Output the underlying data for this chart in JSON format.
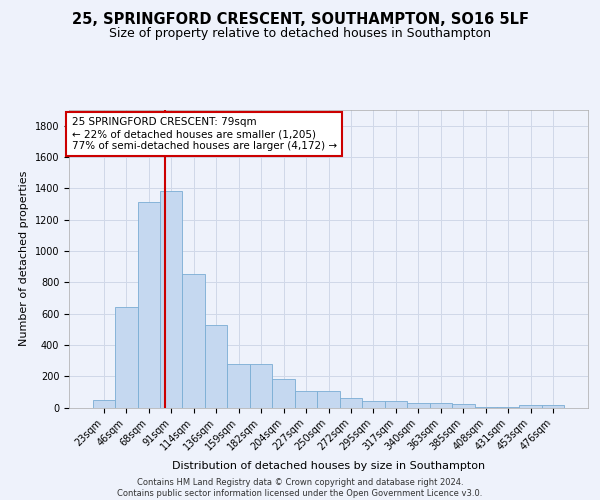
{
  "title_line1": "25, SPRINGFORD CRESCENT, SOUTHAMPTON, SO16 5LF",
  "title_line2": "Size of property relative to detached houses in Southampton",
  "xlabel": "Distribution of detached houses by size in Southampton",
  "ylabel": "Number of detached properties",
  "categories": [
    "23sqm",
    "46sqm",
    "68sqm",
    "91sqm",
    "114sqm",
    "136sqm",
    "159sqm",
    "182sqm",
    "204sqm",
    "227sqm",
    "250sqm",
    "272sqm",
    "295sqm",
    "317sqm",
    "340sqm",
    "363sqm",
    "385sqm",
    "408sqm",
    "431sqm",
    "453sqm",
    "476sqm"
  ],
  "values": [
    50,
    640,
    1310,
    1380,
    850,
    530,
    275,
    275,
    185,
    105,
    105,
    60,
    40,
    40,
    30,
    30,
    20,
    5,
    5,
    15,
    15
  ],
  "bar_color": "#c5d8f0",
  "bar_edge_color": "#7aadd4",
  "grid_color": "#d0d8e8",
  "vline_color": "#cc0000",
  "vline_pos": 2.72,
  "annotation_text": "25 SPRINGFORD CRESCENT: 79sqm\n← 22% of detached houses are smaller (1,205)\n77% of semi-detached houses are larger (4,172) →",
  "annotation_box_facecolor": "white",
  "annotation_box_edgecolor": "#cc0000",
  "footer_line1": "Contains HM Land Registry data © Crown copyright and database right 2024.",
  "footer_line2": "Contains public sector information licensed under the Open Government Licence v3.0.",
  "ylim": [
    0,
    1900
  ],
  "yticks": [
    0,
    200,
    400,
    600,
    800,
    1000,
    1200,
    1400,
    1600,
    1800
  ],
  "background_color": "#eef2fb",
  "title_fontsize": 10.5,
  "subtitle_fontsize": 9,
  "axis_label_fontsize": 8,
  "tick_fontsize": 7,
  "annotation_fontsize": 7.5,
  "footer_fontsize": 6
}
